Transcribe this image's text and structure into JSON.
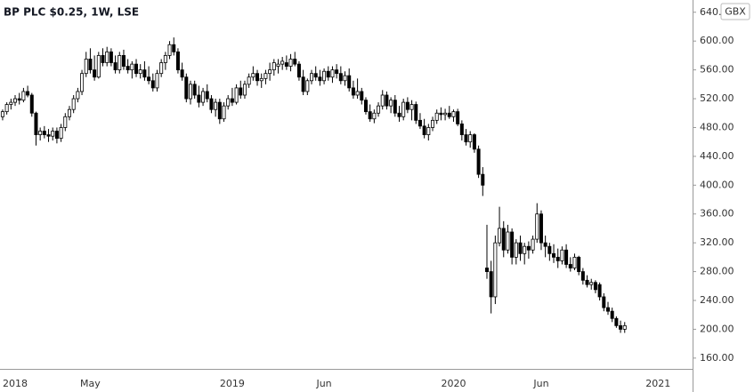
{
  "chart_data": {
    "type": "candlestick",
    "title": "BP PLC $0.25, 1W, LSE",
    "unit": "GBX",
    "categories": [
      null,
      null,
      null,
      "2018",
      null,
      null,
      null,
      null,
      null,
      null,
      null,
      null,
      null,
      null,
      null,
      null,
      null,
      null,
      null,
      null,
      null,
      "May",
      null,
      null,
      null,
      null,
      null,
      null,
      null,
      null,
      null,
      null,
      null,
      null,
      null,
      null,
      null,
      null,
      null,
      null,
      null,
      null,
      null,
      null,
      null,
      null,
      null,
      null,
      null,
      null,
      null,
      null,
      null,
      null,
      null,
      "2019",
      null,
      null,
      null,
      null,
      null,
      null,
      null,
      null,
      null,
      null,
      null,
      null,
      null,
      null,
      null,
      null,
      null,
      null,
      null,
      null,
      null,
      "Jun",
      null,
      null,
      null,
      null,
      null,
      null,
      null,
      null,
      null,
      null,
      null,
      null,
      null,
      null,
      null,
      null,
      null,
      null,
      null,
      null,
      null,
      null,
      null,
      null,
      null,
      null,
      null,
      null,
      null,
      null,
      "2020",
      null,
      null,
      null,
      null,
      null,
      null,
      null,
      null,
      null,
      null,
      null,
      null,
      null,
      null,
      null,
      null,
      null,
      null,
      null,
      null,
      "Jun",
      null,
      null,
      null,
      null,
      null,
      null,
      null,
      null,
      null,
      null,
      null,
      null,
      null,
      null,
      null,
      null,
      null,
      null,
      null,
      null,
      null,
      null,
      null,
      null,
      null,
      null,
      null,
      "2021"
    ],
    "values": [
      [
        495,
        505,
        490,
        502
      ],
      [
        502,
        515,
        498,
        512
      ],
      [
        512,
        520,
        505,
        515
      ],
      [
        515,
        525,
        510,
        520
      ],
      [
        520,
        528,
        512,
        518
      ],
      [
        518,
        535,
        515,
        530
      ],
      [
        530,
        538,
        522,
        525
      ],
      [
        525,
        528,
        495,
        500
      ],
      [
        500,
        502,
        455,
        470
      ],
      [
        470,
        480,
        462,
        475
      ],
      [
        475,
        482,
        465,
        470
      ],
      [
        470,
        478,
        460,
        468
      ],
      [
        468,
        480,
        462,
        475
      ],
      [
        475,
        480,
        458,
        465
      ],
      [
        465,
        485,
        460,
        480
      ],
      [
        480,
        500,
        475,
        495
      ],
      [
        495,
        510,
        490,
        505
      ],
      [
        505,
        525,
        500,
        520
      ],
      [
        520,
        535,
        515,
        530
      ],
      [
        530,
        560,
        525,
        555
      ],
      [
        555,
        585,
        550,
        575
      ],
      [
        575,
        590,
        555,
        560
      ],
      [
        560,
        580,
        545,
        550
      ],
      [
        550,
        585,
        548,
        580
      ],
      [
        580,
        590,
        565,
        570
      ],
      [
        570,
        592,
        565,
        585
      ],
      [
        585,
        590,
        565,
        570
      ],
      [
        570,
        580,
        555,
        560
      ],
      [
        560,
        585,
        555,
        580
      ],
      [
        580,
        588,
        560,
        565
      ],
      [
        565,
        575,
        555,
        560
      ],
      [
        560,
        572,
        548,
        568
      ],
      [
        568,
        575,
        550,
        555
      ],
      [
        555,
        568,
        548,
        560
      ],
      [
        560,
        572,
        545,
        550
      ],
      [
        550,
        565,
        540,
        545
      ],
      [
        545,
        555,
        530,
        535
      ],
      [
        535,
        560,
        530,
        555
      ],
      [
        555,
        575,
        550,
        570
      ],
      [
        570,
        585,
        560,
        580
      ],
      [
        580,
        600,
        575,
        595
      ],
      [
        595,
        605,
        580,
        585
      ],
      [
        585,
        590,
        555,
        560
      ],
      [
        560,
        570,
        545,
        550
      ],
      [
        550,
        555,
        515,
        520
      ],
      [
        520,
        545,
        512,
        540
      ],
      [
        540,
        545,
        520,
        525
      ],
      [
        525,
        538,
        508,
        515
      ],
      [
        515,
        535,
        510,
        530
      ],
      [
        530,
        540,
        515,
        520
      ],
      [
        520,
        525,
        500,
        505
      ],
      [
        505,
        520,
        495,
        515
      ],
      [
        515,
        520,
        485,
        492
      ],
      [
        492,
        515,
        488,
        510
      ],
      [
        510,
        525,
        505,
        520
      ],
      [
        520,
        535,
        510,
        515
      ],
      [
        515,
        540,
        512,
        535
      ],
      [
        535,
        545,
        520,
        525
      ],
      [
        525,
        545,
        520,
        540
      ],
      [
        540,
        555,
        535,
        550
      ],
      [
        550,
        565,
        545,
        555
      ],
      [
        555,
        560,
        538,
        545
      ],
      [
        545,
        555,
        535,
        548
      ],
      [
        548,
        560,
        540,
        555
      ],
      [
        555,
        570,
        545,
        560
      ],
      [
        560,
        575,
        552,
        570
      ],
      [
        565,
        575,
        555,
        568
      ],
      [
        568,
        578,
        560,
        572
      ],
      [
        570,
        580,
        560,
        565
      ],
      [
        565,
        582,
        558,
        575
      ],
      [
        575,
        585,
        565,
        568
      ],
      [
        568,
        572,
        545,
        550
      ],
      [
        550,
        560,
        525,
        530
      ],
      [
        530,
        548,
        525,
        545
      ],
      [
        545,
        560,
        540,
        555
      ],
      [
        555,
        565,
        545,
        550
      ],
      [
        550,
        560,
        538,
        545
      ],
      [
        545,
        562,
        540,
        558
      ],
      [
        558,
        565,
        545,
        550
      ],
      [
        550,
        565,
        542,
        560
      ],
      [
        560,
        568,
        548,
        555
      ],
      [
        555,
        565,
        540,
        545
      ],
      [
        545,
        558,
        538,
        552
      ],
      [
        552,
        562,
        530,
        535
      ],
      [
        535,
        545,
        520,
        525
      ],
      [
        525,
        548,
        520,
        530
      ],
      [
        530,
        535,
        512,
        518
      ],
      [
        518,
        522,
        498,
        502
      ],
      [
        502,
        512,
        488,
        492
      ],
      [
        492,
        505,
        486,
        500
      ],
      [
        500,
        515,
        495,
        510
      ],
      [
        510,
        532,
        505,
        525
      ],
      [
        525,
        530,
        505,
        510
      ],
      [
        510,
        522,
        500,
        518
      ],
      [
        518,
        525,
        495,
        500
      ],
      [
        500,
        510,
        488,
        495
      ],
      [
        495,
        520,
        490,
        515
      ],
      [
        515,
        522,
        500,
        505
      ],
      [
        505,
        518,
        490,
        512
      ],
      [
        512,
        516,
        485,
        490
      ],
      [
        490,
        500,
        478,
        482
      ],
      [
        482,
        492,
        465,
        470
      ],
      [
        470,
        485,
        462,
        480
      ],
      [
        480,
        495,
        475,
        490
      ],
      [
        490,
        505,
        485,
        500
      ],
      [
        500,
        508,
        490,
        498
      ],
      [
        498,
        506,
        490,
        500
      ],
      [
        500,
        510,
        492,
        495
      ],
      [
        495,
        505,
        488,
        502
      ],
      [
        502,
        506,
        482,
        485
      ],
      [
        485,
        490,
        462,
        470
      ],
      [
        470,
        478,
        455,
        460
      ],
      [
        460,
        475,
        452,
        470
      ],
      [
        470,
        472,
        445,
        450
      ],
      [
        450,
        455,
        410,
        415
      ],
      [
        415,
        425,
        385,
        400
      ],
      [
        285,
        345,
        270,
        280
      ],
      [
        280,
        295,
        222,
        245
      ],
      [
        245,
        330,
        235,
        320
      ],
      [
        320,
        370,
        315,
        340
      ],
      [
        340,
        350,
        300,
        310
      ],
      [
        310,
        345,
        305,
        335
      ],
      [
        335,
        340,
        290,
        300
      ],
      [
        300,
        325,
        290,
        320
      ],
      [
        320,
        330,
        295,
        305
      ],
      [
        305,
        320,
        290,
        315
      ],
      [
        315,
        322,
        298,
        310
      ],
      [
        310,
        330,
        305,
        325
      ],
      [
        325,
        375,
        320,
        360
      ],
      [
        360,
        365,
        310,
        320
      ],
      [
        320,
        330,
        300,
        315
      ],
      [
        315,
        320,
        295,
        305
      ],
      [
        305,
        318,
        292,
        300
      ],
      [
        300,
        312,
        285,
        295
      ],
      [
        295,
        315,
        290,
        310
      ],
      [
        310,
        318,
        285,
        290
      ],
      [
        290,
        300,
        280,
        285
      ],
      [
        285,
        305,
        282,
        300
      ],
      [
        300,
        302,
        275,
        280
      ],
      [
        280,
        285,
        262,
        268
      ],
      [
        268,
        275,
        258,
        262
      ],
      [
        262,
        270,
        255,
        265
      ],
      [
        265,
        268,
        250,
        255
      ],
      [
        262,
        265,
        240,
        245
      ],
      [
        245,
        250,
        225,
        230
      ],
      [
        230,
        238,
        220,
        225
      ],
      [
        225,
        230,
        210,
        215
      ],
      [
        215,
        218,
        202,
        205
      ],
      [
        205,
        212,
        195,
        200
      ],
      [
        200,
        210,
        195,
        205
      ],
      null,
      null,
      null,
      null,
      null,
      null,
      null,
      null
    ],
    "up_color": "#ffffff",
    "down_color": "#000000",
    "wick_color": "#000000",
    "ylim": [
      145,
      657
    ],
    "yticks": [
      {
        "value": 160,
        "label": "160.00"
      },
      {
        "value": 200,
        "label": "200.00"
      },
      {
        "value": 240,
        "label": "240.00"
      },
      {
        "value": 280,
        "label": "280.00"
      },
      {
        "value": 320,
        "label": "320.00"
      },
      {
        "value": 360,
        "label": "360.00"
      },
      {
        "value": 400,
        "label": "400.00"
      },
      {
        "value": 440,
        "label": "440.00"
      },
      {
        "value": 480,
        "label": "480.00"
      },
      {
        "value": 520,
        "label": "520.00"
      },
      {
        "value": 560,
        "label": "560.00"
      },
      {
        "value": 600,
        "label": "600.00"
      },
      {
        "value": 640,
        "label": "640.00"
      }
    ]
  }
}
